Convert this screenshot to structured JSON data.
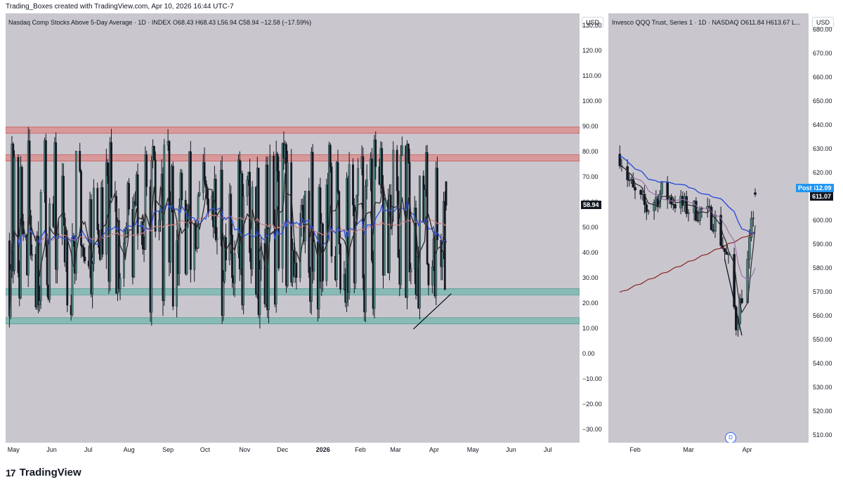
{
  "header": {
    "credit": "Trading_Boxes created with TradingView.com, Apr 10, 2026 16:44 UTC-7"
  },
  "left_chart": {
    "legend": "Nasdaq Comp Stocks Above 5-Day Average · 1D · INDEX  O68.43  H68.43  L56.94  C58.94  −12.58 (−17.59%)",
    "currency": "USD",
    "last_value_label": "58.94",
    "time_labels": [
      "May",
      "Jun",
      "Jul",
      "Aug",
      "Sep",
      "Oct",
      "Nov",
      "Dec",
      "2026",
      "Feb",
      "Mar",
      "Apr",
      "May",
      "Jun",
      "Jul"
    ],
    "y_tick_labels": [
      "130.00",
      "120.00",
      "110.00",
      "100.00",
      "90.00",
      "80.00",
      "70.00",
      "60.00",
      "50.00",
      "40.00",
      "30.00",
      "20.00",
      "10.00",
      "0.00",
      "−10.00",
      "−20.00",
      "−30.00"
    ]
  },
  "right_chart": {
    "legend": "Invesco QQQ Trust, Series 1 · 1D · NASDAQ  O611.84  H613.67  L...",
    "currency": "USD",
    "post_label": "Post",
    "post_value": "612.09",
    "last_value_label": "611.07",
    "time_labels": [
      "Feb",
      "Mar",
      "Apr"
    ],
    "y_tick_labels": [
      "680.00",
      "670.00",
      "660.00",
      "650.00",
      "640.00",
      "630.00",
      "620.00",
      "610.00",
      "600.00",
      "590.00",
      "580.00",
      "570.00",
      "560.00",
      "550.00",
      "540.00",
      "530.00",
      "520.00",
      "510.00"
    ],
    "event_badge": "D"
  },
  "footer": {
    "brand": "TradingView",
    "brand_mark": "17"
  },
  "colors": {
    "candle_fill": "#4a7c77",
    "candle_dark": "#131722",
    "zone_red": "#e57373",
    "zone_teal": "#5fb3a6",
    "ma_blue": "#2f4fd6",
    "ma_red": "#8b2525",
    "ma_purple": "#9a6aa8",
    "post_blue": "#2196f3",
    "pane_bg": "#c9c7cd"
  },
  "chart_data": [
    {
      "type": "candlestick",
      "title": "Nasdaq Comp Stocks Above 5-Day Average",
      "interval": "1D",
      "ylim": [
        -35,
        135
      ],
      "x_range": [
        "2025-04-25",
        "2026-07-25"
      ],
      "last": {
        "open": 68.43,
        "high": 68.43,
        "low": 56.94,
        "close": 58.94,
        "change": -12.58,
        "change_pct": -17.59
      },
      "resistance_zones": [
        [
          87.5,
          90.0
        ],
        [
          76.5,
          79.0
        ]
      ],
      "support_zones": [
        [
          23.5,
          26.0
        ],
        [
          12.0,
          14.5
        ]
      ],
      "trendline": {
        "from": [
          "2026-03-15",
          10.0
        ],
        "to": [
          "2026-04-14",
          24.0
        ]
      },
      "typical_range": [
        10,
        95
      ],
      "grid": false
    },
    {
      "type": "candlestick",
      "title": "Invesco QQQ Trust, Series 1",
      "interval": "1D",
      "ylim": [
        507,
        687
      ],
      "x_range": [
        "2026-01-23",
        "2026-05-08"
      ],
      "last": {
        "open": 611.84,
        "high": 613.67,
        "close": 611.07,
        "post": 612.09
      },
      "trendline": {
        "from": [
          "2026-03-25",
          584.0
        ],
        "to": [
          "2026-04-03",
          552.0
        ]
      },
      "approx_path": [
        [
          "2026-01-29",
          628
        ],
        [
          "2026-02-05",
          612
        ],
        [
          "2026-02-12",
          605
        ],
        [
          "2026-02-20",
          612
        ],
        [
          "2026-02-27",
          608
        ],
        [
          "2026-03-06",
          605
        ],
        [
          "2026-03-13",
          604
        ],
        [
          "2026-03-20",
          600
        ],
        [
          "2026-03-27",
          582
        ],
        [
          "2026-03-31",
          557
        ],
        [
          "2026-04-06",
          582
        ],
        [
          "2026-04-10",
          611
        ]
      ],
      "grid": false
    }
  ]
}
